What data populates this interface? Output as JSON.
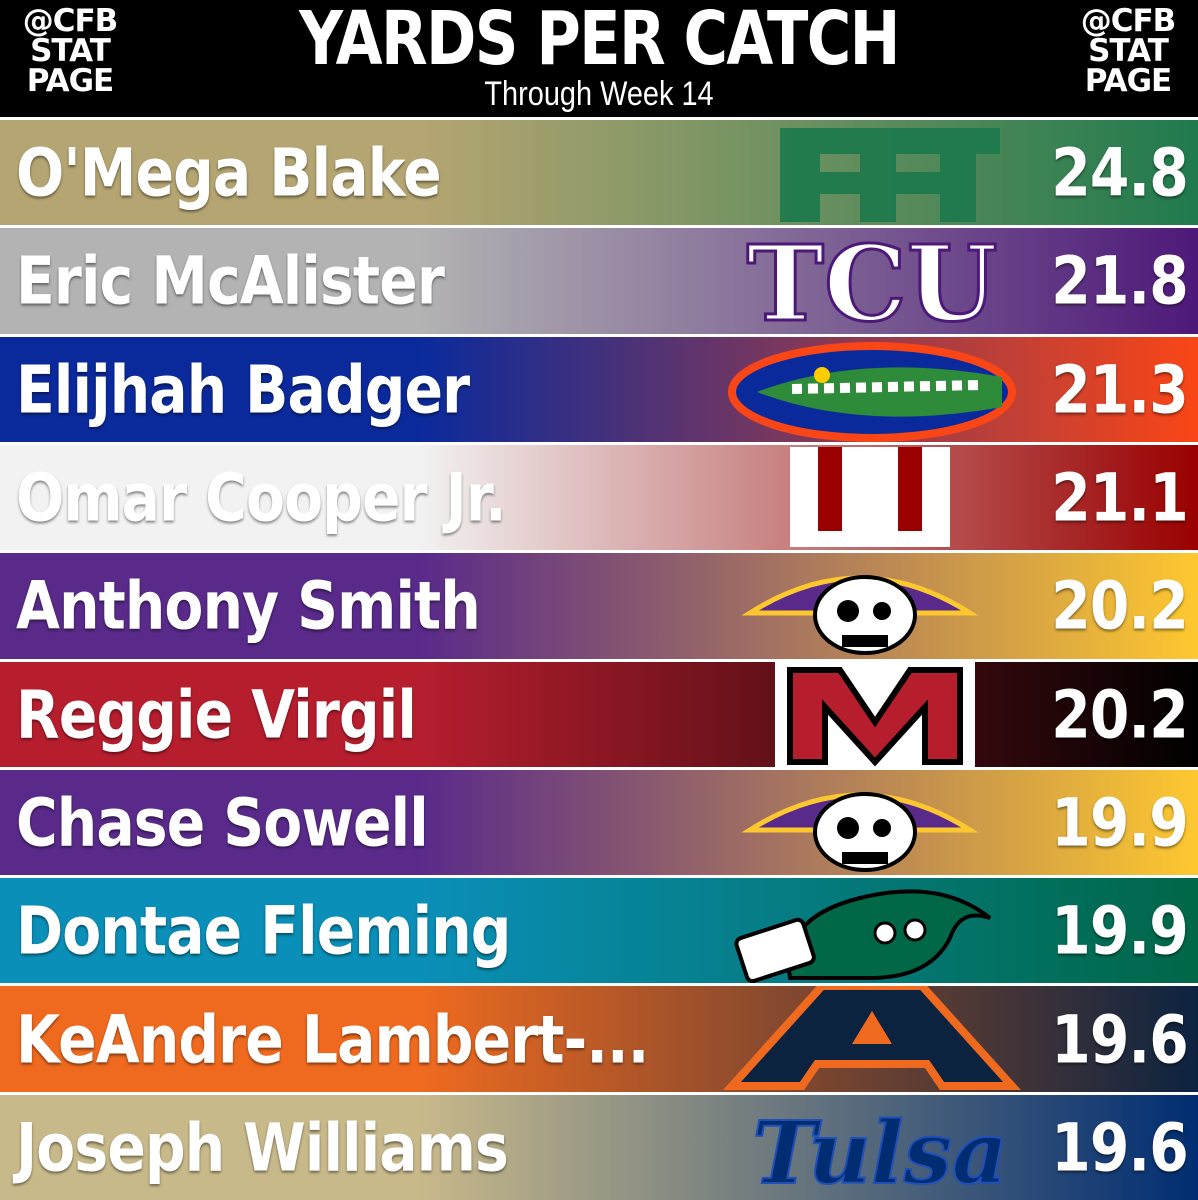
{
  "header": {
    "handle_left": [
      "@CFB",
      "STAT",
      "PAGE"
    ],
    "handle_right": [
      "@CFB",
      "STAT",
      "PAGE"
    ],
    "title": "YARDS PER CATCH",
    "subtitle": "Through Week 14"
  },
  "chart_data": {
    "type": "table",
    "title": "YARDS PER CATCH",
    "subtitle": "Through Week 14",
    "rows": [
      {
        "player": "O'Mega Blake",
        "value": "24.8",
        "logo": "charlotte-logo",
        "colors": [
          "#b5a572",
          "#1f7a4d"
        ]
      },
      {
        "player": "Eric McAlister",
        "value": "21.8",
        "logo": "tcu-logo",
        "colors": [
          "#b3b3b3",
          "#4d1979"
        ]
      },
      {
        "player": "Elijhah Badger",
        "value": "21.3",
        "logo": "florida-gator-logo",
        "colors": [
          "#0a2a9c",
          "#fa4616"
        ]
      },
      {
        "player": "Omar Cooper Jr.",
        "value": "21.1",
        "logo": "indiana-logo",
        "colors": [
          "#f2f2f2",
          "#990000"
        ]
      },
      {
        "player": "Anthony Smith",
        "value": "20.2",
        "logo": "ecu-pirate-logo",
        "colors": [
          "#592a8a",
          "#fdc82f"
        ]
      },
      {
        "player": "Reggie Virgil",
        "value": "20.2",
        "logo": "miami-oh-logo",
        "colors": [
          "#b61e2e",
          "#000000"
        ]
      },
      {
        "player": "Chase Sowell",
        "value": "19.9",
        "logo": "ecu-pirate-logo",
        "colors": [
          "#592a8a",
          "#fdc82f"
        ]
      },
      {
        "player": "Dontae Fleming",
        "value": "19.9",
        "logo": "tulane-wave-logo",
        "colors": [
          "#0a8fb8",
          "#006747"
        ]
      },
      {
        "player": "KeAndre Lambert-...",
        "value": "19.6",
        "logo": "auburn-logo",
        "colors": [
          "#ef6a1f",
          "#0c2340"
        ]
      },
      {
        "player": "Joseph Williams",
        "value": "19.6",
        "logo": "tulsa-logo",
        "colors": [
          "#c8b98a",
          "#002d72"
        ]
      }
    ]
  }
}
